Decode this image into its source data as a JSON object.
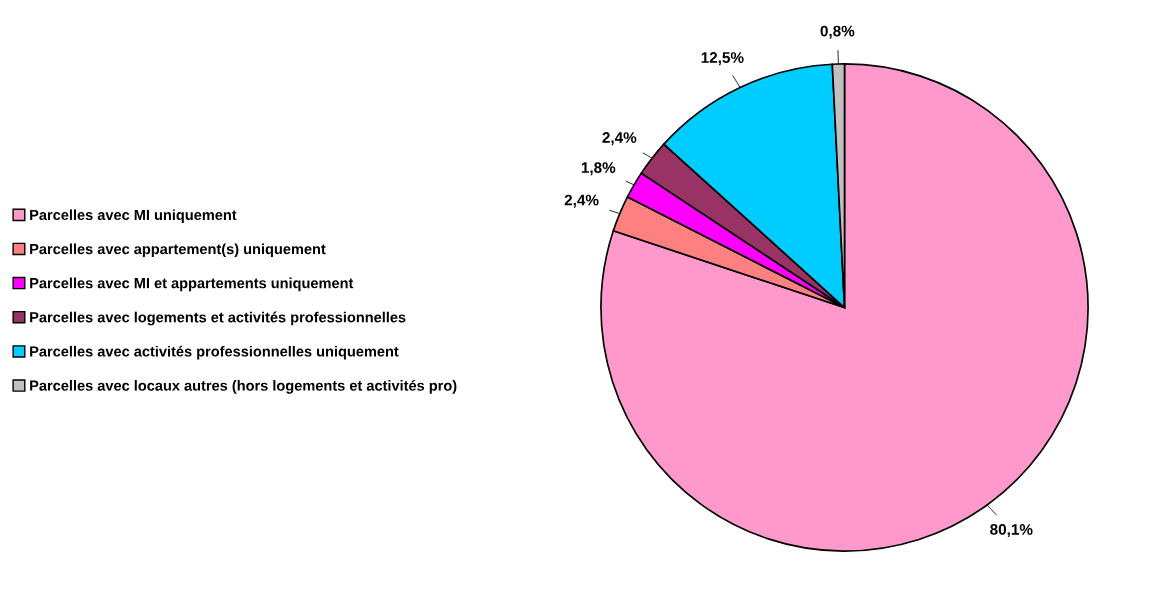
{
  "chart_data": {
    "type": "pie",
    "categories": [
      "Parcelles avec MI uniquement",
      "Parcelles avec appartement(s) uniquement",
      "Parcelles avec MI et appartements uniquement",
      "Parcelles avec logements et activités professionnelles",
      "Parcelles avec activités professionnelles uniquement",
      "Parcelles avec locaux autres (hors logements et activités pro)"
    ],
    "values": [
      80.1,
      2.4,
      1.8,
      2.4,
      12.5,
      0.8
    ],
    "colors": [
      "#ff99cc",
      "#ff8080",
      "#ff00ff",
      "#993366",
      "#00ccff",
      "#c0c0c0"
    ],
    "value_labels": [
      "80,1%",
      "2,4%",
      "1,8%",
      "2,4%",
      "12,5%",
      "0,8%"
    ],
    "legend": "left"
  }
}
